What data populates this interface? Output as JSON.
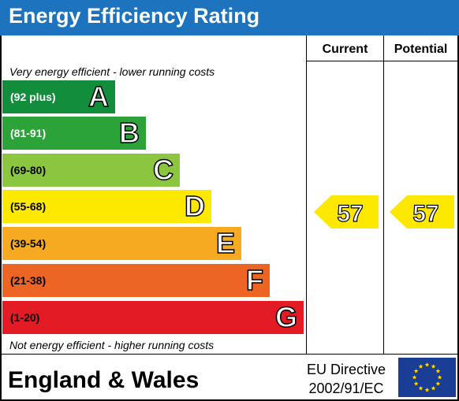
{
  "header": {
    "title": "Energy Efficiency Rating"
  },
  "columns": {
    "current_label": "Current",
    "potential_label": "Potential"
  },
  "notes": {
    "top": "Very energy efficient - lower running costs",
    "bottom": "Not energy efficient - higher running costs"
  },
  "chart_data": {
    "type": "bar",
    "title": "Energy Efficiency Rating",
    "bands": [
      {
        "letter": "A",
        "range": "(92 plus)",
        "color": "#128d3c",
        "range_color": "#ffffff"
      },
      {
        "letter": "B",
        "range": "(81-91)",
        "color": "#2ba338",
        "range_color": "#ffffff"
      },
      {
        "letter": "C",
        "range": "(69-80)",
        "color": "#8cc53f",
        "range_color": "#000000"
      },
      {
        "letter": "D",
        "range": "(55-68)",
        "color": "#fde800",
        "range_color": "#000000"
      },
      {
        "letter": "E",
        "range": "(39-54)",
        "color": "#f6aa22",
        "range_color": "#000000"
      },
      {
        "letter": "F",
        "range": "(21-38)",
        "color": "#ed6525",
        "range_color": "#000000"
      },
      {
        "letter": "G",
        "range": "(1-20)",
        "color": "#e21b25",
        "range_color": "#000000"
      }
    ],
    "current": {
      "value": 57,
      "band": "D",
      "color": "#fde800"
    },
    "potential": {
      "value": 57,
      "band": "D",
      "color": "#fde800"
    }
  },
  "footer": {
    "region": "England & Wales",
    "directive_line1": "EU Directive",
    "directive_line2": "2002/91/EC",
    "flag_color": "#1a3d96",
    "star_color": "#ffdd00"
  }
}
